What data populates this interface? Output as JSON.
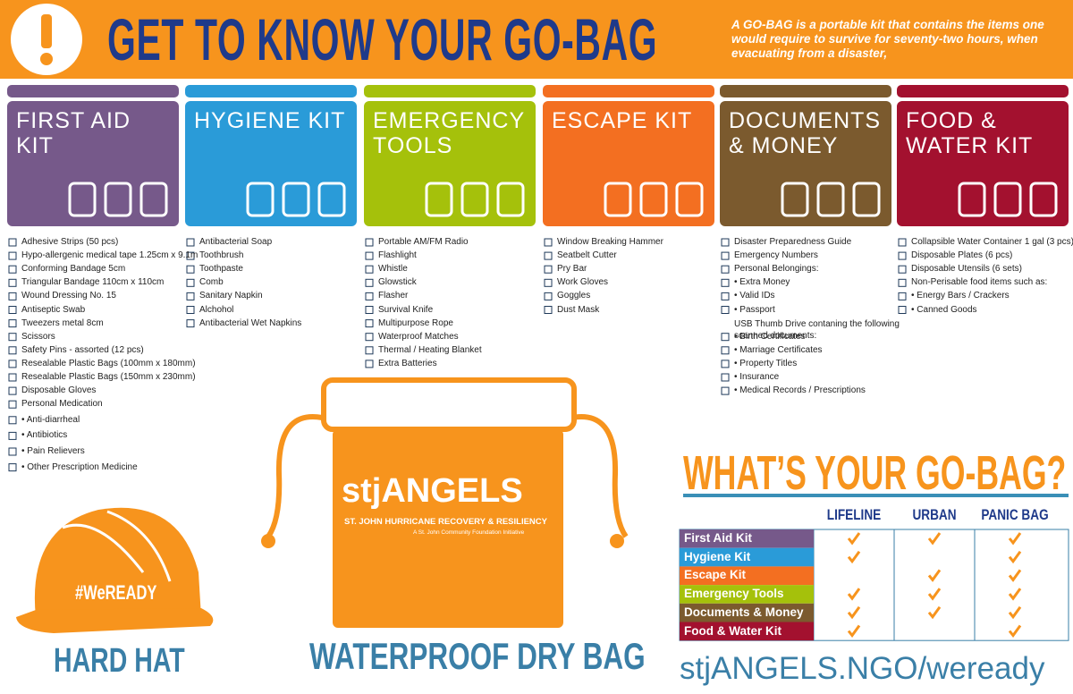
{
  "header": {
    "title": "GET TO KNOW YOUR GO-BAG",
    "description": "A GO-BAG is a portable kit that contains the items one would require to survive for seventy-two hours, when evacuating from a disaster,"
  },
  "kits": [
    {
      "title": "FIRST AID KIT",
      "items": [
        "Adhesive Strips (50 pcs)",
        "Hypo-allergenic medical tape 1.25cm x 9.1m",
        "Conforming Bandage 5cm",
        "Triangular Bandage 110cm x 110cm",
        "Wound Dressing No. 15",
        "Antiseptic Swab",
        "Tweezers metal 8cm",
        "Scissors",
        "Safety Pins - assorted (12 pcs)",
        "Resealable Plastic Bags (100mm x 180mm)",
        "Resealable Plastic Bags (150mm x 230mm)",
        "Disposable Gloves",
        "Personal Medication",
        "• Anti-diarrheal",
        "• Antibiotics",
        "• Pain Relievers",
        "• Other Prescription Medicine"
      ]
    },
    {
      "title": "HYGIENE KIT",
      "items": [
        "Antibacterial Soap",
        "Toothbrush",
        "Toothpaste",
        "Comb",
        "Sanitary Napkin",
        "Alchohol",
        "Antibacterial Wet Napkins"
      ]
    },
    {
      "title": "EMERGENCY TOOLS",
      "items": [
        "Portable AM/FM Radio",
        "Flashlight",
        "Whistle",
        "Glowstick",
        "Flasher",
        "Survival Knife",
        "Multipurpose Rope",
        "Waterproof Matches",
        "Thermal / Heating Blanket",
        "Extra Batteries"
      ]
    },
    {
      "title": "ESCAPE KIT",
      "items": [
        "Window Breaking Hammer",
        "Seatbelt Cutter",
        "Pry Bar",
        "Work Gloves",
        "Goggles",
        "Dust Mask"
      ]
    },
    {
      "title": "DOCUMENTS & MONEY",
      "items": [
        "Disaster Preparedness Guide",
        "Emergency Numbers",
        "Personal Belongings:",
        "• Extra Money",
        "• Valid IDs",
        "• Passport",
        {
          "text": "USB Thumb Drive contaning the following scanned documents:",
          "checkbox": false
        },
        "• Birth Certificates",
        "• Marriage Certificates",
        "• Property Titles",
        "• Insurance",
        "• Medical Records / Prescriptions"
      ]
    },
    {
      "title": "FOOD & WATER KIT",
      "items": [
        "Collapsible Water Container 1 gal (3 pcs)",
        "Disposable Plates (6 pcs)",
        "Disposable Utensils (6 sets)",
        "Non-Perisable food items such as:",
        "• Energy Bars / Crackers",
        "• Canned Goods"
      ]
    }
  ],
  "hard_hat": {
    "badge": "#WeREADY",
    "label": "HARD HAT"
  },
  "dry_bag": {
    "logo": "stjANGELS",
    "logo_line": "ST. JOHN HURRICANE RECOVERY & RESILIENCY",
    "logo_sub": "A St. John Community Foundation Initiative",
    "label": "WATERPROOF DRY BAG"
  },
  "go_bag_table": {
    "title": "WHAT’S YOUR GO-BAG?",
    "columns": [
      "LIFELINE",
      "URBAN",
      "PANIC BAG"
    ],
    "rows": [
      {
        "name": "First Aid Kit",
        "checks": [
          true,
          true,
          true
        ]
      },
      {
        "name": "Hygiene Kit",
        "checks": [
          true,
          false,
          true
        ]
      },
      {
        "name": "Escape Kit",
        "checks": [
          false,
          true,
          true
        ]
      },
      {
        "name": "Emergency Tools",
        "checks": [
          true,
          true,
          true
        ]
      },
      {
        "name": "Documents & Money",
        "checks": [
          true,
          true,
          true
        ]
      },
      {
        "name": "Food & Water Kit",
        "checks": [
          true,
          false,
          true
        ]
      }
    ]
  },
  "footer": {
    "url": "stjANGELS.NGO/weready"
  }
}
